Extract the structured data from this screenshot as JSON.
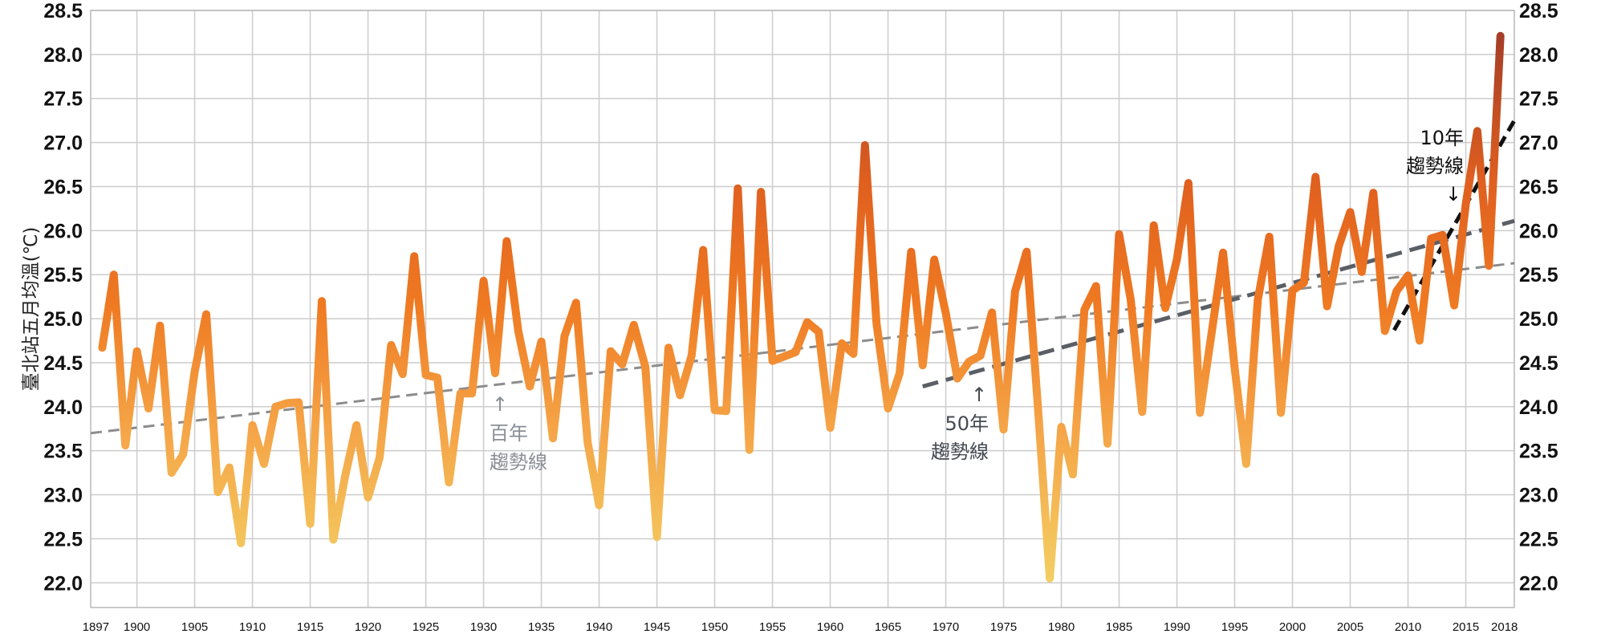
{
  "chart_data": {
    "type": "line",
    "title": "",
    "xlabel": "",
    "ylabel": "臺北站五月均溫(℃)",
    "xlim": [
      1896,
      2019.2
    ],
    "ylim": [
      21.72,
      28.5
    ],
    "grid": true,
    "y_ticks": [
      "22.0",
      "22.5",
      "23.0",
      "23.5",
      "24.0",
      "24.5",
      "25.0",
      "25.5",
      "26.0",
      "26.5",
      "27.0",
      "27.5",
      "28.0",
      "28.5"
    ],
    "y_tick_values": [
      22.0,
      22.5,
      23.0,
      23.5,
      24.0,
      24.5,
      25.0,
      25.5,
      26.0,
      26.5,
      27.0,
      27.5,
      28.0,
      28.5
    ],
    "x_ticks": [
      "1897",
      "1900",
      "1905",
      "1910",
      "1915",
      "1920",
      "1925",
      "1930",
      "1935",
      "1940",
      "1945",
      "1950",
      "1955",
      "1960",
      "1965",
      "1970",
      "1975",
      "1980",
      "1985",
      "1990",
      "1995",
      "2000",
      "2005",
      "2010",
      "2015",
      "2018"
    ],
    "x_tick_values": [
      1897,
      1900,
      1905,
      1910,
      1915,
      1920,
      1925,
      1930,
      1935,
      1940,
      1945,
      1950,
      1955,
      1960,
      1965,
      1970,
      1975,
      1980,
      1985,
      1990,
      1995,
      2000,
      2005,
      2010,
      2015,
      2018
    ],
    "series": [
      {
        "name": "臺北站五月均溫",
        "x_start": 1897,
        "values": [
          24.67,
          25.5,
          23.56,
          24.63,
          23.98,
          24.92,
          23.25,
          23.46,
          24.4,
          25.05,
          23.03,
          23.31,
          22.45,
          23.79,
          23.35,
          24.0,
          24.04,
          24.05,
          22.67,
          25.2,
          22.49,
          23.2,
          23.79,
          22.97,
          23.42,
          24.7,
          24.37,
          25.71,
          24.36,
          24.33,
          23.14,
          24.15,
          24.15,
          25.43,
          24.38,
          25.88,
          24.86,
          24.23,
          24.74,
          23.64,
          24.8,
          25.18,
          23.6,
          22.88,
          24.63,
          24.48,
          24.93,
          24.45,
          22.52,
          24.67,
          24.13,
          24.58,
          25.78,
          23.96,
          23.95,
          26.48,
          23.51,
          26.44,
          24.52,
          24.57,
          24.62,
          24.96,
          24.85,
          23.76,
          24.72,
          24.6,
          26.97,
          24.95,
          23.98,
          24.38,
          25.76,
          24.47,
          25.67,
          25.06,
          24.32,
          24.51,
          24.58,
          25.07,
          23.74,
          25.31,
          25.76,
          23.95,
          22.05,
          23.77,
          23.23,
          25.1,
          25.37,
          23.58,
          25.96,
          25.22,
          23.94,
          26.06,
          25.12,
          25.67,
          26.54,
          23.93,
          24.83,
          25.75,
          24.44,
          23.35,
          25.21,
          25.93,
          23.93,
          25.32,
          25.41,
          26.61,
          25.14,
          25.82,
          26.21,
          25.53,
          26.43,
          24.86,
          25.31,
          25.49,
          24.75,
          25.91,
          25.95,
          25.15,
          26.3,
          27.13,
          25.6,
          28.21
        ],
        "color_scale": [
          "#f3cf63",
          "#f5a447",
          "#ef7a22",
          "#e0601f",
          "#a23b28"
        ]
      }
    ],
    "trend_lines": [
      {
        "name": "century",
        "label_line1": "百年",
        "label_line2": "趨勢線",
        "arrow": "↑",
        "x": [
          1896,
          2019.2
        ],
        "y": [
          23.7,
          25.63
        ],
        "color": "#8c8c8c"
      },
      {
        "name": "fifty-year",
        "label_line1": "50年",
        "label_line2": "趨勢線",
        "arrow": "↑",
        "x": [
          1968,
          2019.2
        ],
        "y": [
          24.23,
          26.11
        ],
        "color": "#5a5f66"
      },
      {
        "name": "ten-year",
        "label_line1": "10年",
        "label_line2": "趨勢線",
        "arrow": "↓",
        "x": [
          2008.8,
          2019.2
        ],
        "y": [
          24.87,
          27.25
        ],
        "color": "#111111"
      }
    ]
  },
  "colors": {
    "grid": "#cccccc",
    "axis": "#b0b0b0",
    "background": "#ffffff"
  }
}
